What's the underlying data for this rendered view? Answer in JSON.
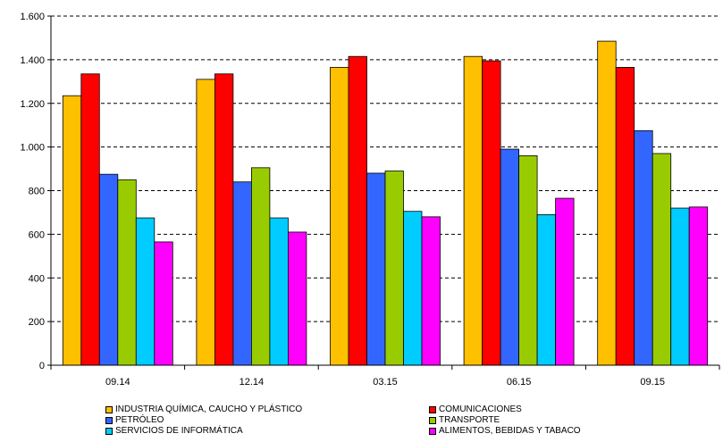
{
  "chart_data": {
    "type": "bar",
    "categories": [
      "09.14",
      "12.14",
      "03.15",
      "06.15",
      "09.15"
    ],
    "ylim": [
      0,
      1600
    ],
    "yticks": [
      0,
      200,
      400,
      600,
      800,
      1000,
      1200,
      1400,
      1600
    ],
    "ytick_labels": [
      "0",
      "200",
      "400",
      "600",
      "800",
      "1.000",
      "1.200",
      "1.400",
      "1.600"
    ],
    "grid": "horizontal dashed",
    "legend_position": "bottom",
    "series": [
      {
        "name": "INDUSTRIA QUÍMICA, CAUCHO Y PLÁSTICO",
        "color": "#FFC000",
        "values": [
          1235,
          1310,
          1365,
          1415,
          1485
        ]
      },
      {
        "name": "COMUNICACIONES",
        "color": "#FF0000",
        "values": [
          1335,
          1335,
          1415,
          1395,
          1365
        ]
      },
      {
        "name": "PETRÓLEO",
        "color": "#3366FF",
        "values": [
          875,
          840,
          880,
          990,
          1075
        ]
      },
      {
        "name": "TRANSPORTE",
        "color": "#99CC00",
        "values": [
          850,
          905,
          890,
          960,
          970
        ]
      },
      {
        "name": "SERVICIOS DE INFORMÁTICA",
        "color": "#00CCFF",
        "values": [
          675,
          675,
          705,
          690,
          720
        ]
      },
      {
        "name": "ALIMENTOS, BEBIDAS Y TABACO",
        "color": "#FF00FF",
        "values": [
          565,
          610,
          680,
          765,
          725
        ]
      }
    ]
  }
}
